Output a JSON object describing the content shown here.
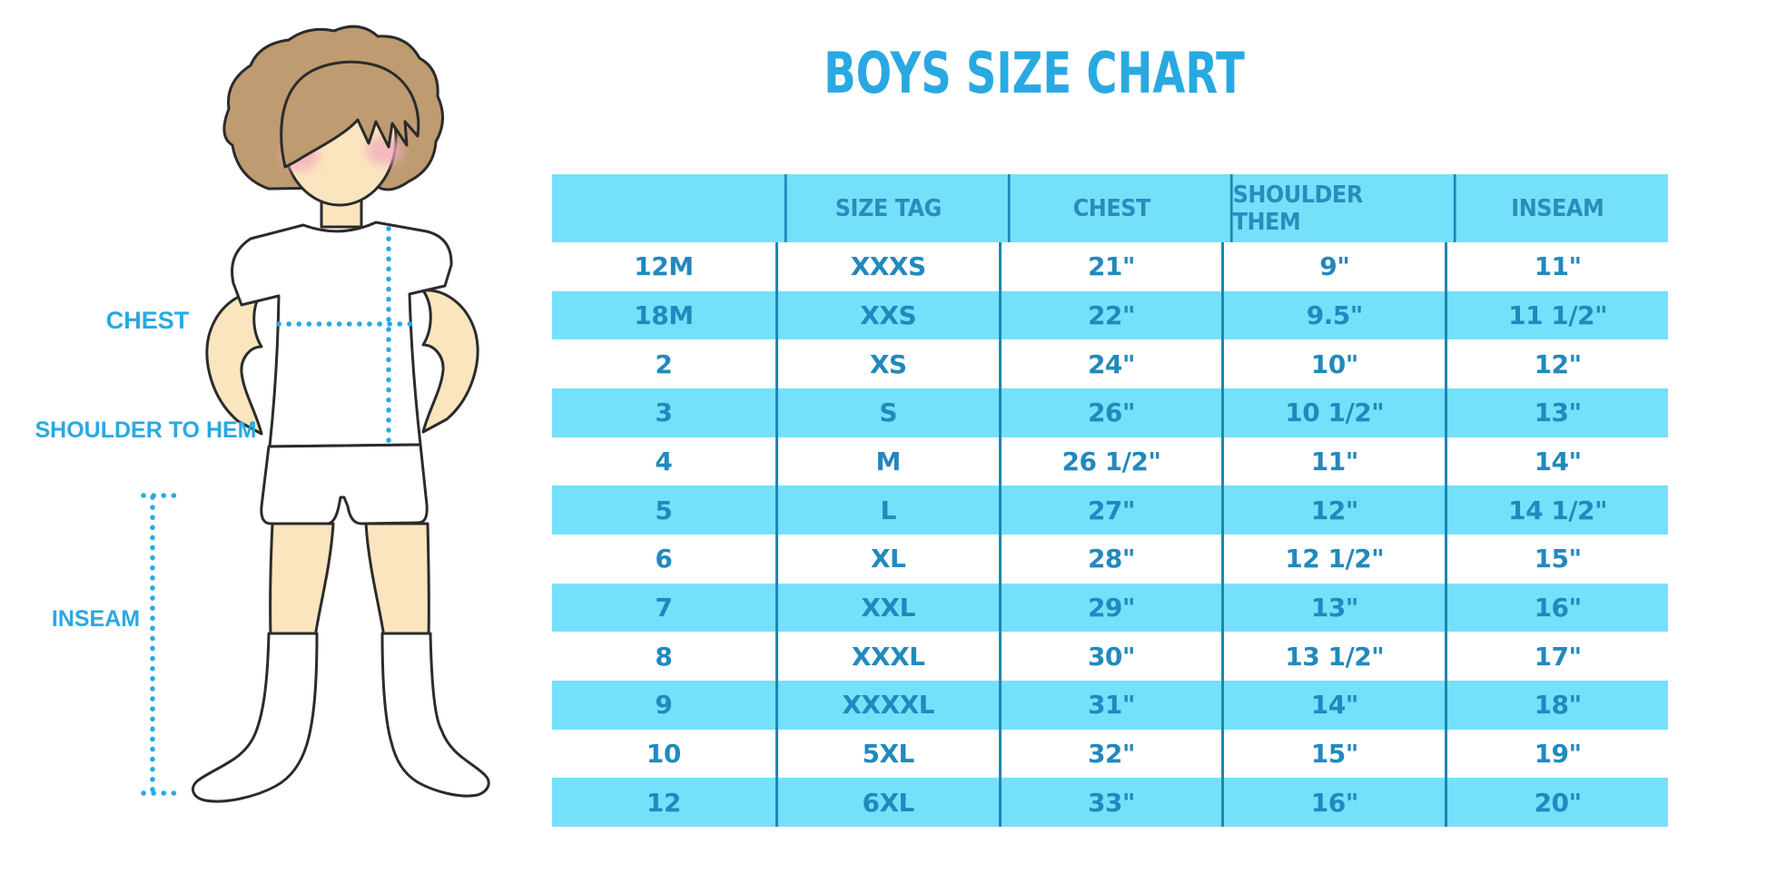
{
  "title": "BOYS SIZE CHART",
  "figure": {
    "labels": {
      "chest": "CHEST",
      "shoulder_to_hem": "SHOULDER TO HEM",
      "inseam": "INSEAM"
    },
    "description": "cartoon boy with measurement dotted lines for chest, shoulder-to-hem and inseam"
  },
  "chart_data": {
    "type": "table",
    "title": "BOYS SIZE CHART",
    "columns": [
      "",
      "SIZE TAG",
      "CHEST",
      "SHOULDER THEM",
      "INSEAM"
    ],
    "rows": [
      [
        "12M",
        "XXXS",
        "21\"",
        "9\"",
        "11\""
      ],
      [
        "18M",
        "XXS",
        "22\"",
        "9.5\"",
        "11 1/2\""
      ],
      [
        "2",
        "XS",
        "24\"",
        "10\"",
        "12\""
      ],
      [
        "3",
        "S",
        "26\"",
        "10 1/2\"",
        "13\""
      ],
      [
        "4",
        "M",
        "26 1/2\"",
        "11\"",
        "14\""
      ],
      [
        "5",
        "L",
        "27\"",
        "12\"",
        "14 1/2\""
      ],
      [
        "6",
        "XL",
        "28\"",
        "12 1/2\"",
        "15\""
      ],
      [
        "7",
        "XXL",
        "29\"",
        "13\"",
        "16\""
      ],
      [
        "8",
        "XXXL",
        "30\"",
        "13 1/2\"",
        "17\""
      ],
      [
        "9",
        "XXXXL",
        "31\"",
        "14\"",
        "18\""
      ],
      [
        "10",
        "5XL",
        "32\"",
        "15\"",
        "19\""
      ],
      [
        "12",
        "6XL",
        "33\"",
        "16\"",
        "20\""
      ]
    ],
    "layout": {
      "header_background": "#75E0FA",
      "alternating_row_background": [
        "#ffffff",
        "#75E0FA"
      ],
      "column_divider_color": "#1E86B4",
      "grid": "vertical dividers only"
    }
  },
  "colors": {
    "title_blue": "#29A9E1",
    "table_text_blue": "#2189BE",
    "band_cyan": "#75E0FA",
    "divider_blue": "#1E86B4",
    "skin": "#FAE5BE",
    "hair_brown": "#BE9B70",
    "blush_pink": "#F2ABBE",
    "outline_dark": "#2b2b2b"
  }
}
